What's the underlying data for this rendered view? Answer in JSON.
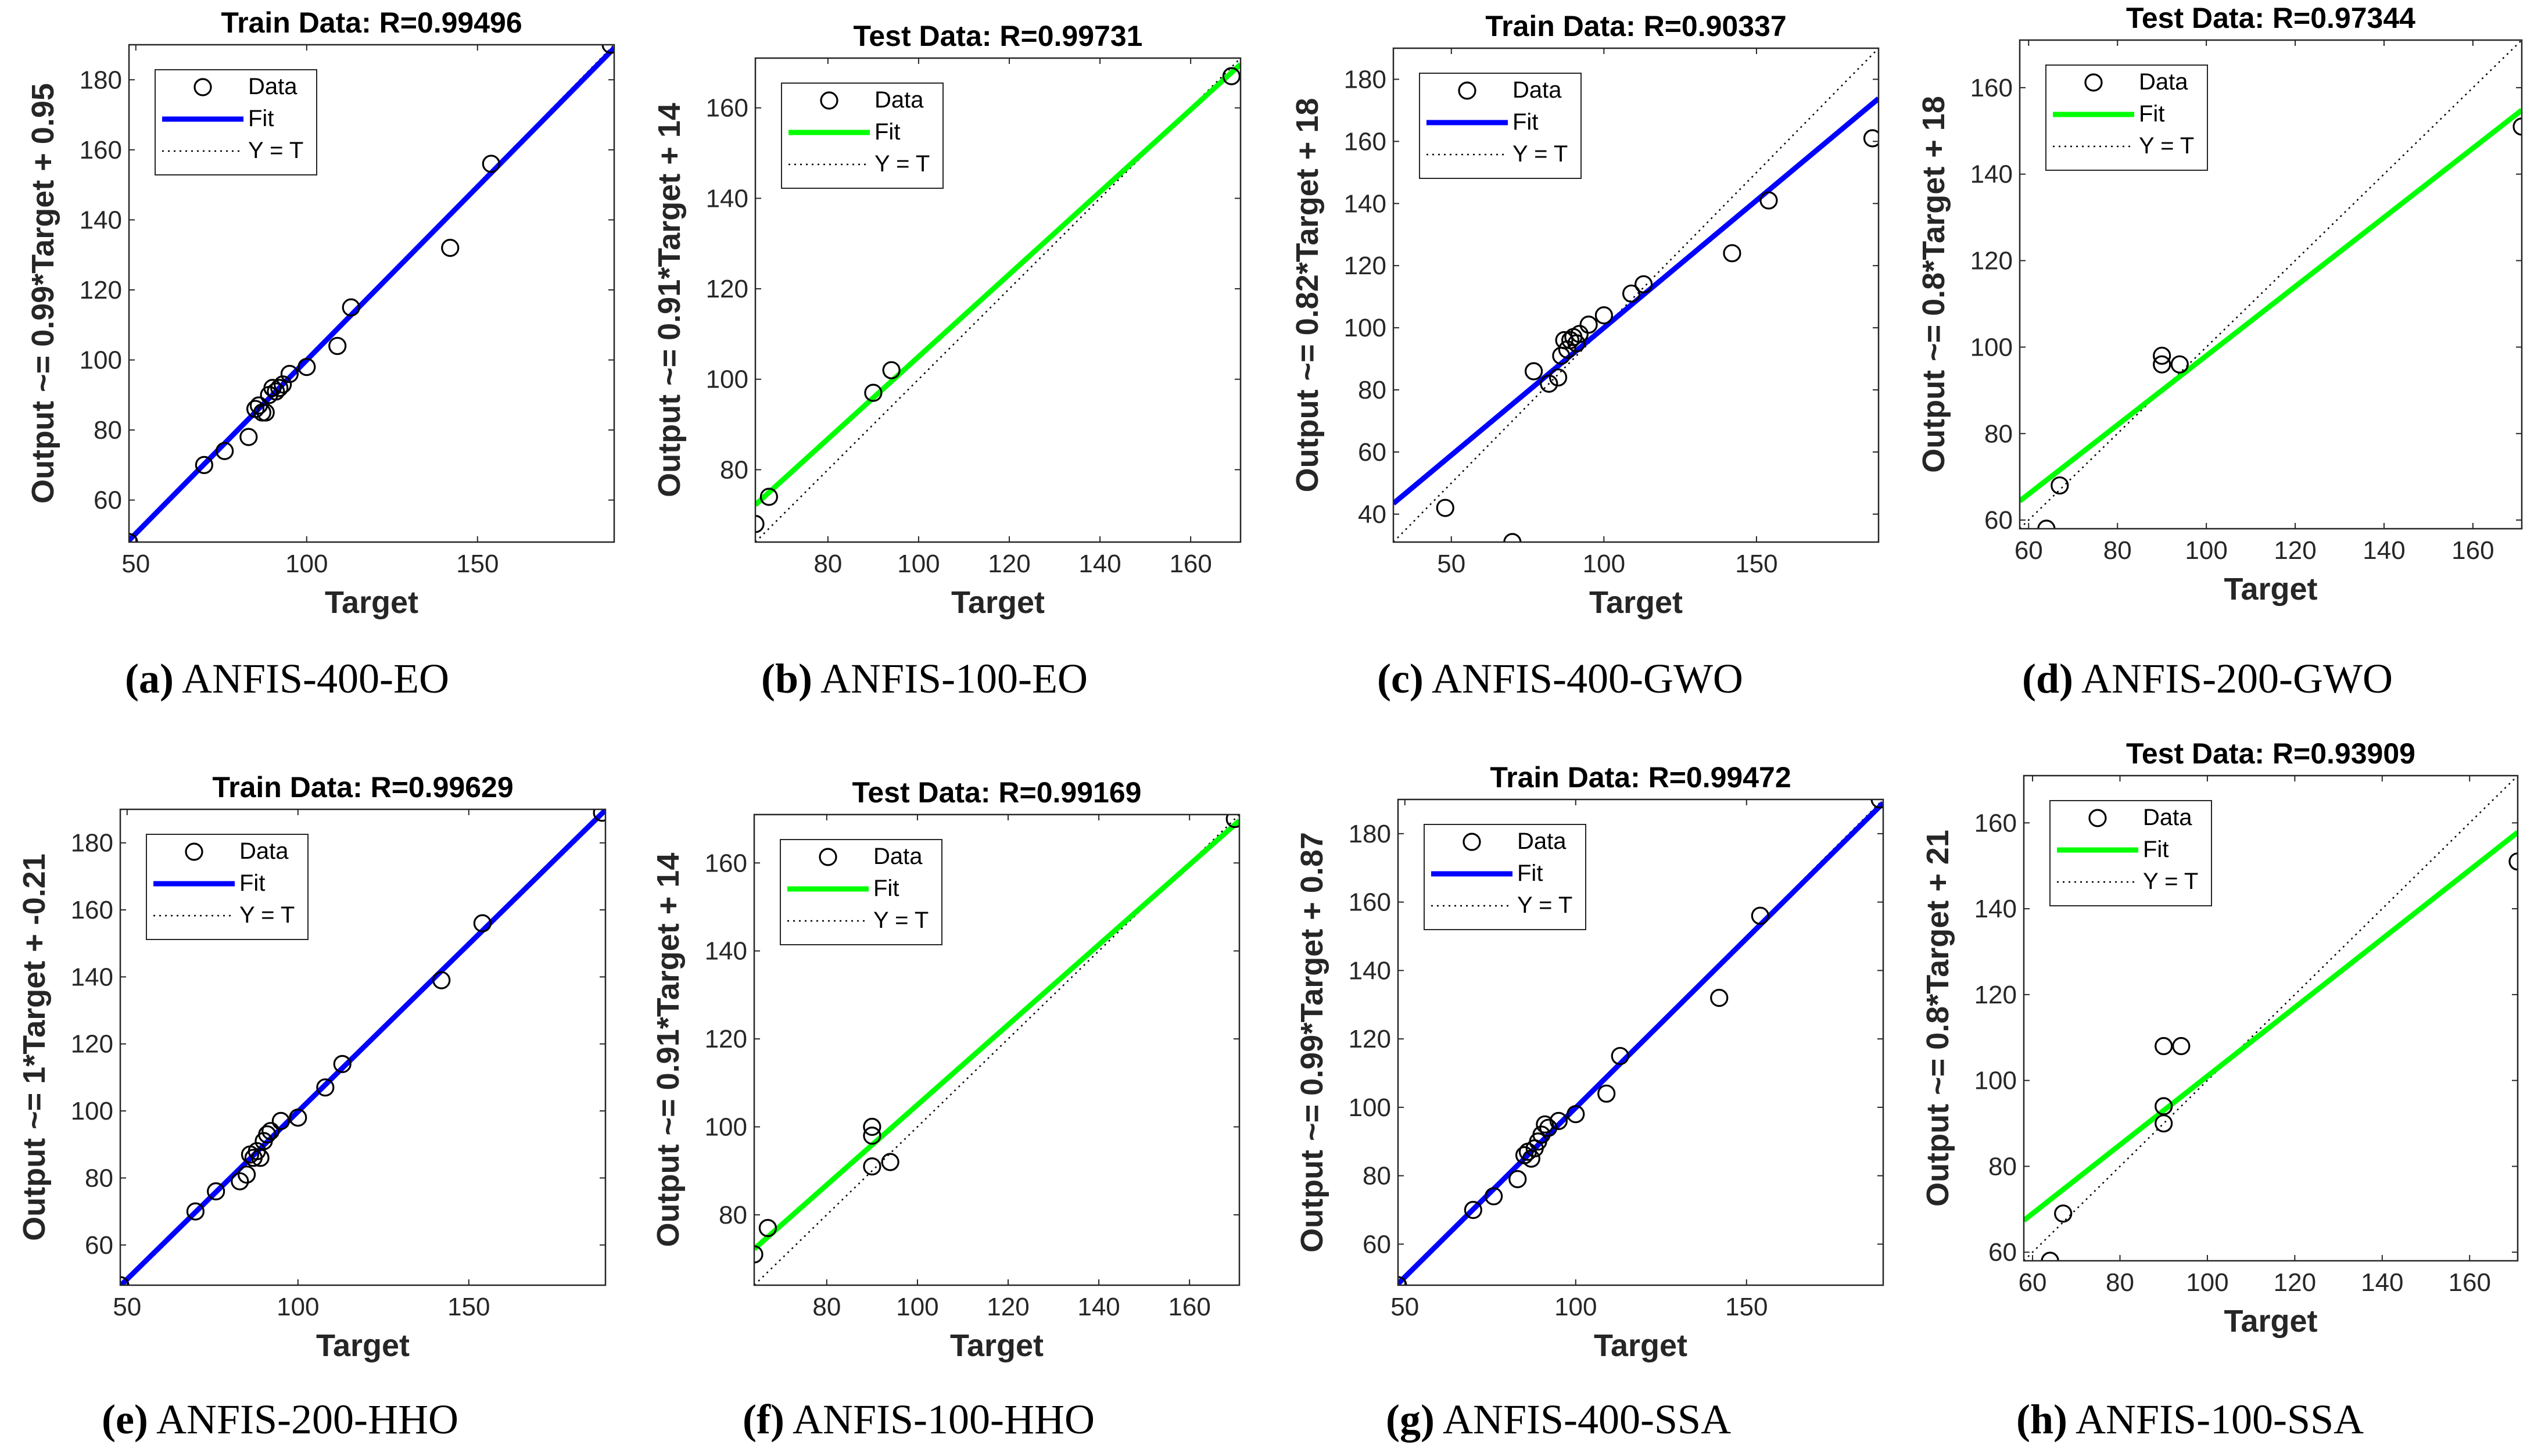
{
  "chart_data": [
    {
      "type": "scatter",
      "title": "Train Data: R=0.99496",
      "xlabel": "Target",
      "ylabel": "Output ~= 0.99*Target + 0.95",
      "xlim": [
        48,
        190
      ],
      "ylim": [
        48,
        190
      ],
      "xticks": [
        50,
        100,
        150
      ],
      "yticks": [
        60,
        80,
        100,
        120,
        140,
        160,
        180
      ],
      "fit": {
        "slope": 0.99,
        "intercept": 0.95,
        "color": "#0000ff"
      },
      "legend": [
        "Data",
        "Fit",
        "Y = T"
      ],
      "points": [
        [
          48,
          48
        ],
        [
          70,
          70
        ],
        [
          76,
          74
        ],
        [
          83,
          78
        ],
        [
          85,
          86
        ],
        [
          86,
          87
        ],
        [
          87,
          85
        ],
        [
          88,
          85
        ],
        [
          89,
          90
        ],
        [
          90,
          92
        ],
        [
          91,
          91
        ],
        [
          92,
          92
        ],
        [
          93,
          93
        ],
        [
          95,
          96
        ],
        [
          100,
          98
        ],
        [
          109,
          104
        ],
        [
          113,
          115
        ],
        [
          142,
          132
        ],
        [
          154,
          156
        ],
        [
          189,
          190
        ]
      ],
      "caption_label": "(a)",
      "caption_text": " ANFIS-400-EO"
    },
    {
      "type": "scatter",
      "title": "Test Data: R=0.99731",
      "xlabel": "Target",
      "ylabel": "Output ~= 0.91*Target + 14",
      "xlim": [
        64,
        171
      ],
      "ylim": [
        64,
        171
      ],
      "xticks": [
        80,
        100,
        120,
        140,
        160
      ],
      "yticks": [
        80,
        100,
        120,
        140,
        160
      ],
      "fit": {
        "slope": 0.91,
        "intercept": 14,
        "color": "#00ff00"
      },
      "legend": [
        "Data",
        "Fit",
        "Y = T"
      ],
      "points": [
        [
          64,
          68
        ],
        [
          67,
          74
        ],
        [
          90,
          97
        ],
        [
          94,
          102
        ],
        [
          169,
          167
        ]
      ],
      "caption_label": "(b)",
      "caption_text": " ANFIS-100-EO"
    },
    {
      "type": "scatter",
      "title": "Train Data: R=0.90337",
      "xlabel": "Target",
      "ylabel": "Output ~= 0.82*Target + 18",
      "xlim": [
        31,
        190
      ],
      "ylim": [
        31,
        190
      ],
      "xticks": [
        50,
        100,
        150
      ],
      "yticks": [
        40,
        60,
        80,
        100,
        120,
        140,
        160,
        180
      ],
      "fit": {
        "slope": 0.82,
        "intercept": 18,
        "color": "#0000ff"
      },
      "legend": [
        "Data",
        "Fit",
        "Y = T"
      ],
      "points": [
        [
          48,
          42
        ],
        [
          70,
          31
        ],
        [
          77,
          86
        ],
        [
          82,
          82
        ],
        [
          85,
          84
        ],
        [
          86,
          91
        ],
        [
          87,
          96
        ],
        [
          88,
          93
        ],
        [
          89,
          96
        ],
        [
          90,
          97
        ],
        [
          91,
          95
        ],
        [
          92,
          98
        ],
        [
          95,
          101
        ],
        [
          100,
          104
        ],
        [
          109,
          111
        ],
        [
          113,
          114
        ],
        [
          142,
          124
        ],
        [
          154,
          141
        ],
        [
          188,
          161
        ]
      ],
      "caption_label": "(c)",
      "caption_text": " ANFIS-400-GWO"
    },
    {
      "type": "scatter",
      "title": "Test Data: R=0.97344",
      "xlabel": "Target",
      "ylabel": "Output ~= 0.8*Target + 18",
      "xlim": [
        58,
        171
      ],
      "ylim": [
        58,
        171
      ],
      "xticks": [
        60,
        80,
        100,
        120,
        140,
        160
      ],
      "yticks": [
        60,
        80,
        100,
        120,
        140,
        160
      ],
      "fit": {
        "slope": 0.8,
        "intercept": 18,
        "color": "#00ff00"
      },
      "legend": [
        "Data",
        "Fit",
        "Y = T"
      ],
      "points": [
        [
          64,
          58
        ],
        [
          67,
          68
        ],
        [
          90,
          98
        ],
        [
          90,
          96
        ],
        [
          94,
          96
        ],
        [
          171,
          151
        ]
      ],
      "caption_label": "(d)",
      "caption_text": " ANFIS-200-GWO"
    },
    {
      "type": "scatter",
      "title": "Train Data: R=0.99629",
      "xlabel": "Target",
      "ylabel": "Output ~= 1*Target + -0.21",
      "xlim": [
        48,
        190
      ],
      "ylim": [
        48,
        190
      ],
      "xticks": [
        50,
        100,
        150
      ],
      "yticks": [
        60,
        80,
        100,
        120,
        140,
        160,
        180
      ],
      "fit": {
        "slope": 1,
        "intercept": -0.21,
        "color": "#0000ff"
      },
      "legend": [
        "Data",
        "Fit",
        "Y = T"
      ],
      "points": [
        [
          48,
          48
        ],
        [
          70,
          70
        ],
        [
          76,
          76
        ],
        [
          83,
          79
        ],
        [
          85,
          81
        ],
        [
          86,
          87
        ],
        [
          87,
          86
        ],
        [
          88,
          88
        ],
        [
          89,
          86
        ],
        [
          90,
          91
        ],
        [
          91,
          93
        ],
        [
          92,
          94
        ],
        [
          95,
          97
        ],
        [
          100,
          98
        ],
        [
          108,
          107
        ],
        [
          113,
          114
        ],
        [
          142,
          139
        ],
        [
          154,
          156
        ],
        [
          189,
          189
        ]
      ],
      "caption_label": "(e)",
      "caption_text": " ANFIS-200-HHO"
    },
    {
      "type": "scatter",
      "title": "Test Data: R=0.99169",
      "xlabel": "Target",
      "ylabel": "Output ~= 0.91*Target + 14",
      "xlim": [
        64,
        171
      ],
      "ylim": [
        64,
        171
      ],
      "xticks": [
        80,
        100,
        120,
        140,
        160
      ],
      "yticks": [
        80,
        100,
        120,
        140,
        160
      ],
      "fit": {
        "slope": 0.91,
        "intercept": 14,
        "color": "#00ff00"
      },
      "legend": [
        "Data",
        "Fit",
        "Y = T"
      ],
      "points": [
        [
          64,
          71
        ],
        [
          67,
          77
        ],
        [
          90,
          100
        ],
        [
          90,
          98
        ],
        [
          90,
          91
        ],
        [
          94,
          92
        ],
        [
          170,
          170
        ]
      ],
      "caption_label": "(f)",
      "caption_text": " ANFIS-100-HHO"
    },
    {
      "type": "scatter",
      "title": "Train Data: R=0.99472",
      "xlabel": "Target",
      "ylabel": "Output ~= 0.99*Target + 0.87",
      "xlim": [
        48,
        190
      ],
      "ylim": [
        48,
        190
      ],
      "xticks": [
        50,
        100,
        150
      ],
      "yticks": [
        60,
        80,
        100,
        120,
        140,
        160,
        180
      ],
      "fit": {
        "slope": 0.99,
        "intercept": 0.87,
        "color": "#0000ff"
      },
      "legend": [
        "Data",
        "Fit",
        "Y = T"
      ],
      "points": [
        [
          48,
          48
        ],
        [
          70,
          70
        ],
        [
          76,
          74
        ],
        [
          83,
          79
        ],
        [
          85,
          86
        ],
        [
          86,
          87
        ],
        [
          87,
          85
        ],
        [
          88,
          88
        ],
        [
          89,
          90
        ],
        [
          90,
          92
        ],
        [
          91,
          95
        ],
        [
          92,
          94
        ],
        [
          95,
          96
        ],
        [
          100,
          98
        ],
        [
          109,
          104
        ],
        [
          113,
          115
        ],
        [
          142,
          132
        ],
        [
          154,
          156
        ],
        [
          189,
          190
        ]
      ],
      "caption_label": "(g)",
      "caption_text": " ANFIS-400-SSA"
    },
    {
      "type": "scatter",
      "title": "Test Data: R=0.93909",
      "xlabel": "Target",
      "ylabel": "Output ~= 0.8*Target + 21",
      "xlim": [
        58,
        171
      ],
      "ylim": [
        58,
        171
      ],
      "xticks": [
        60,
        80,
        100,
        120,
        140,
        160
      ],
      "yticks": [
        60,
        80,
        100,
        120,
        140,
        160
      ],
      "fit": {
        "slope": 0.8,
        "intercept": 21,
        "color": "#00ff00"
      },
      "legend": [
        "Data",
        "Fit",
        "Y = T"
      ],
      "points": [
        [
          64,
          58
        ],
        [
          67,
          69
        ],
        [
          90,
          108
        ],
        [
          90,
          94
        ],
        [
          90,
          90
        ],
        [
          94,
          108
        ],
        [
          171,
          151
        ]
      ],
      "caption_label": "(h)",
      "caption_text": " ANFIS-100-SSA"
    }
  ]
}
